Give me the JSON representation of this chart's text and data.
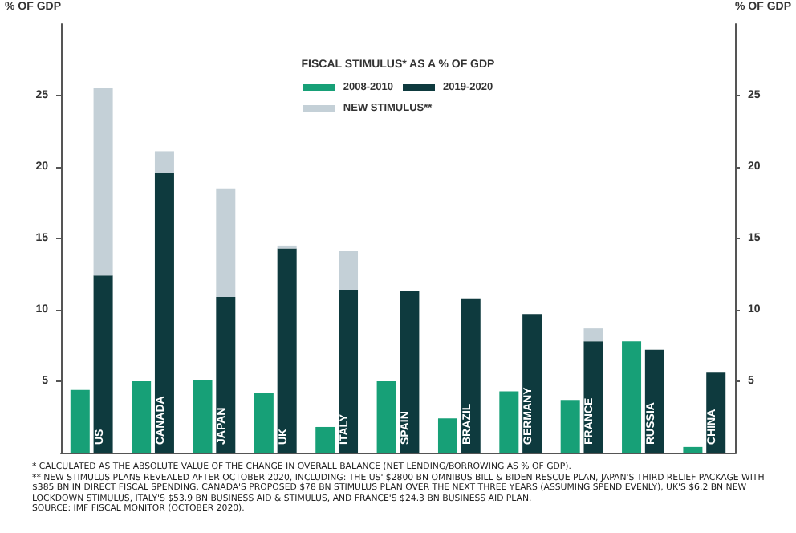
{
  "chart_data": {
    "type": "bar",
    "title": "FISCAL STIMULUS* AS A % OF GDP",
    "ylabel": "% OF GDP",
    "y2label": "% OF GDP",
    "categories": [
      "US",
      "CANADA",
      "JAPAN",
      "UK",
      "ITALY",
      "SPAIN",
      "BRAZIL",
      "GERMANY",
      "FRANCE",
      "RUSSIA",
      "CHINA"
    ],
    "series": [
      {
        "name": "2008-2010",
        "color": "#17a077",
        "values": [
          4.4,
          5.0,
          5.1,
          4.2,
          1.8,
          5.0,
          2.4,
          4.3,
          3.7,
          7.8,
          0.4
        ]
      },
      {
        "name": "2019-2020",
        "color": "#0e3a3e",
        "values": [
          12.4,
          19.6,
          10.9,
          14.3,
          11.4,
          11.3,
          10.8,
          9.7,
          7.8,
          7.2,
          5.6
        ]
      },
      {
        "name": "NEW STIMULUS**",
        "color": "#c4d0d7",
        "values": [
          13.1,
          1.5,
          7.6,
          0.2,
          2.7,
          null,
          null,
          null,
          0.9,
          null,
          null
        ],
        "base": [
          12.4,
          19.6,
          10.9,
          14.3,
          11.4,
          null,
          null,
          null,
          7.8,
          null,
          null
        ]
      }
    ],
    "ylim": [
      0,
      30
    ],
    "yticks": [
      5,
      10,
      15,
      20,
      25
    ],
    "y2lim": [
      0,
      30
    ],
    "y2ticks": [
      5,
      10,
      15,
      20,
      25
    ],
    "grid": false,
    "legend": "top",
    "annotations": [
      "* CALCULATED AS THE ABSOLUTE VALUE OF THE CHANGE IN OVERALL BALANCE (NET LENDING/BORROWING AS % OF GDP).",
      "** NEW STIMULUS PLANS REVEALED AFTER OCTOBER 2020, INCLUDING: THE US' $2800 BN OMNIBUS BILL & BIDEN RESCUE PLAN, JAPAN'S THIRD RELIEF PACKAGE WITH $385 BN IN DIRECT FISCAL SPENDING, CANADA'S PROPOSED $78 BN STIMULUS PLAN OVER THE NEXT THREE YEARS (ASSUMING SPEND EVENLY), UK'S $6.2 BN NEW LOCKDOWN STIMULUS, ITALY'S $53.9 BN BUSINESS AID & STIMULUS, AND FRANCE'S $24.3 BN BUSINESS AID PLAN.",
      "SOURCE: IMF FISCAL MONITOR (OCTOBER 2020)."
    ]
  }
}
